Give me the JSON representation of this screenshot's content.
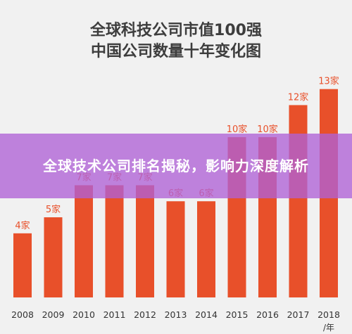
{
  "banner": {
    "text": "全球技术公司排名揭秘，影响力深度解析"
  },
  "chart_data": {
    "type": "bar",
    "title_lines": [
      "全球科技公司市值100强",
      "中国公司数量十年变化图"
    ],
    "categories": [
      "2008",
      "2009",
      "2010",
      "2011",
      "2012",
      "2013",
      "2014",
      "2015",
      "2016",
      "2017",
      "2018"
    ],
    "values": [
      4,
      5,
      7,
      7,
      7,
      6,
      6,
      10,
      10,
      12,
      13
    ],
    "value_labels": [
      "4家",
      "5家",
      "7家",
      "7家",
      "7家",
      "6家",
      "6家",
      "10家",
      "10家",
      "12家",
      "13家"
    ],
    "x_unit": "/年",
    "ylim": [
      0,
      13.6
    ],
    "grid": false,
    "colors": {
      "bar": "#e8502a",
      "background": "#f1f1f1"
    }
  }
}
